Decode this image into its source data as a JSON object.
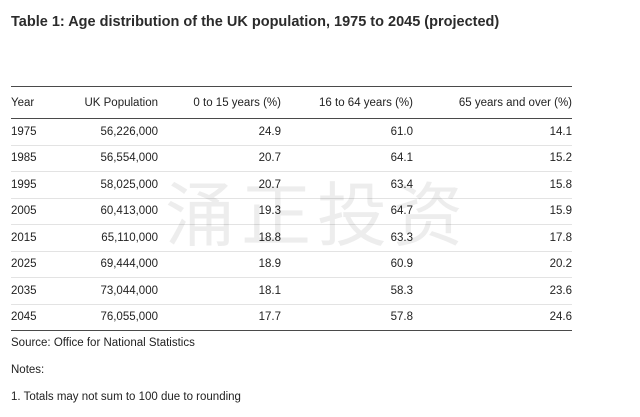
{
  "title": "Table 1: Age distribution of the UK population, 1975 to 2045 (projected)",
  "table": {
    "headers": [
      "Year",
      "UK Population",
      "0 to 15 years (%)",
      "16 to 64 years (%)",
      "65 years and over (%)"
    ],
    "rows": [
      [
        "1975",
        "56,226,000",
        "24.9",
        "61.0",
        "14.1"
      ],
      [
        "1985",
        "56,554,000",
        "20.7",
        "64.1",
        "15.2"
      ],
      [
        "1995",
        "58,025,000",
        "20.7",
        "63.4",
        "15.8"
      ],
      [
        "2005",
        "60,413,000",
        "19.3",
        "64.7",
        "15.9"
      ],
      [
        "2015",
        "65,110,000",
        "18.8",
        "63.3",
        "17.8"
      ],
      [
        "2025",
        "69,444,000",
        "18.9",
        "60.9",
        "20.2"
      ],
      [
        "2035",
        "73,044,000",
        "18.1",
        "58.3",
        "23.6"
      ],
      [
        "2045",
        "76,055,000",
        "17.7",
        "57.8",
        "24.6"
      ]
    ]
  },
  "source": "Source: Office for National Statistics",
  "notes_label": "Notes:",
  "notes": [
    "1. Totals may not sum to 100 due to rounding"
  ],
  "watermark": "涌正投资"
}
